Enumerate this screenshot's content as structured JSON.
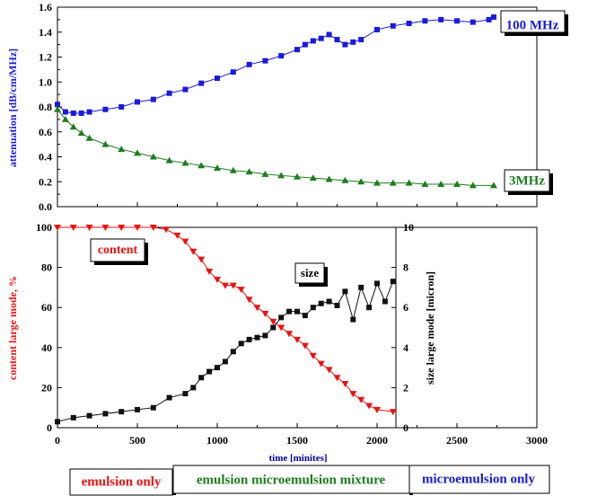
{
  "chart_data": [
    {
      "type": "scatter",
      "title": "",
      "xlabel": "",
      "ylabel": "attenuation [dB/cm/MHz]",
      "xlim": [
        0,
        3000
      ],
      "ylim": [
        0.0,
        1.6
      ],
      "y_ticks": [
        "0.0",
        "0.2",
        "0.4",
        "0.6",
        "0.8",
        "1.0",
        "1.2",
        "1.4",
        "1.6"
      ],
      "series": [
        {
          "name": "100 MHz",
          "color": "#1a1adc",
          "marker": "square",
          "x": [
            0,
            50,
            100,
            150,
            200,
            300,
            400,
            500,
            600,
            700,
            800,
            900,
            1000,
            1100,
            1200,
            1300,
            1400,
            1500,
            1550,
            1600,
            1650,
            1700,
            1750,
            1800,
            1850,
            1900,
            2000,
            2100,
            2200,
            2300,
            2400,
            2500,
            2600,
            2700,
            2730
          ],
          "y": [
            0.82,
            0.76,
            0.75,
            0.75,
            0.76,
            0.78,
            0.8,
            0.84,
            0.86,
            0.91,
            0.94,
            0.99,
            1.03,
            1.08,
            1.14,
            1.17,
            1.21,
            1.26,
            1.3,
            1.33,
            1.35,
            1.38,
            1.34,
            1.3,
            1.32,
            1.34,
            1.42,
            1.45,
            1.47,
            1.49,
            1.5,
            1.49,
            1.48,
            1.5,
            1.52
          ]
        },
        {
          "name": "3MHz",
          "color": "#1e7d1e",
          "marker": "triangle",
          "x": [
            0,
            50,
            100,
            150,
            200,
            300,
            400,
            500,
            600,
            700,
            800,
            900,
            1000,
            1100,
            1200,
            1300,
            1400,
            1500,
            1600,
            1700,
            1800,
            1900,
            2000,
            2100,
            2200,
            2300,
            2400,
            2500,
            2600,
            2730
          ],
          "y": [
            0.78,
            0.7,
            0.64,
            0.59,
            0.55,
            0.5,
            0.46,
            0.43,
            0.4,
            0.37,
            0.35,
            0.33,
            0.31,
            0.29,
            0.28,
            0.26,
            0.25,
            0.24,
            0.23,
            0.22,
            0.21,
            0.2,
            0.19,
            0.19,
            0.19,
            0.18,
            0.18,
            0.18,
            0.17,
            0.17
          ]
        }
      ],
      "labels": {
        "s100": "100 MHz",
        "s3": "3MHz"
      }
    },
    {
      "type": "scatter",
      "title": "",
      "xlabel": "time [minites]",
      "ylabel": "content large mode, %",
      "y2label": "size large mode [micron]",
      "xlim": [
        0,
        3000
      ],
      "ylim": [
        0,
        100
      ],
      "y2lim": [
        0,
        10
      ],
      "x_ticks": [
        "0",
        "500",
        "1000",
        "1500",
        "2000",
        "2500",
        "3000"
      ],
      "y_ticks": [
        "0",
        "20",
        "40",
        "60",
        "80",
        "100"
      ],
      "y2_ticks": [
        "0",
        "2",
        "4",
        "6",
        "8",
        "10"
      ],
      "series": [
        {
          "name": "content",
          "axis": "left",
          "color": "#ee1111",
          "marker": "triangle-down",
          "x": [
            0,
            100,
            200,
            300,
            400,
            500,
            600,
            680,
            750,
            800,
            850,
            900,
            950,
            1000,
            1050,
            1100,
            1150,
            1200,
            1250,
            1300,
            1350,
            1400,
            1450,
            1500,
            1550,
            1600,
            1650,
            1700,
            1750,
            1800,
            1850,
            1900,
            1950,
            2000,
            2100
          ],
          "y": [
            100,
            100,
            100,
            100,
            100,
            100,
            100,
            99,
            96,
            93,
            88,
            84,
            78,
            74,
            71,
            71,
            69,
            64,
            60,
            57,
            53,
            50,
            47,
            44,
            41,
            36,
            32,
            29,
            25,
            22,
            17,
            14,
            11,
            9,
            8
          ]
        },
        {
          "name": "size",
          "axis": "right",
          "color": "#111111",
          "marker": "square",
          "x": [
            0,
            100,
            200,
            300,
            400,
            500,
            600,
            700,
            800,
            850,
            900,
            950,
            1000,
            1050,
            1100,
            1150,
            1200,
            1250,
            1300,
            1350,
            1400,
            1450,
            1500,
            1550,
            1600,
            1650,
            1700,
            1750,
            1800,
            1850,
            1900,
            1950,
            2000,
            2050,
            2100
          ],
          "y": [
            0.3,
            0.5,
            0.6,
            0.7,
            0.8,
            0.9,
            1.0,
            1.5,
            1.7,
            2.0,
            2.5,
            2.8,
            3.0,
            3.3,
            3.8,
            4.2,
            4.4,
            4.5,
            4.6,
            5.0,
            5.5,
            5.8,
            5.8,
            5.6,
            6.0,
            6.2,
            6.3,
            6.1,
            6.8,
            5.4,
            7.0,
            6.0,
            7.2,
            6.3,
            7.3
          ]
        }
      ],
      "labels": {
        "content": "content",
        "size": "size"
      }
    }
  ],
  "phase_labels": [
    "emulsion only",
    "emulsion microemulsion mixture",
    "microemulsion only"
  ],
  "colors": {
    "blue": "#1a1adc",
    "green": "#1e7d1e",
    "red": "#ee1111",
    "black": "#111111"
  }
}
